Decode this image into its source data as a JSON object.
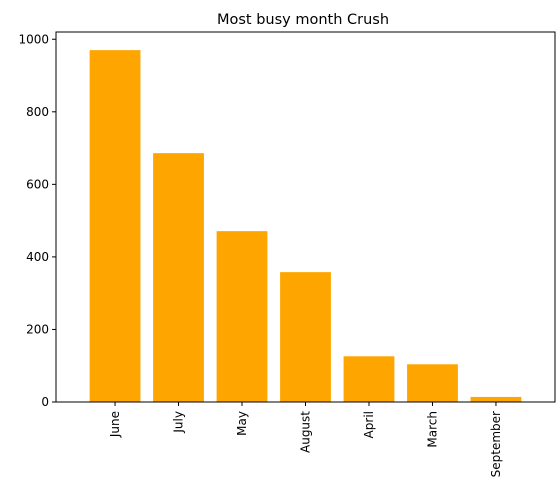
{
  "chart_data": {
    "type": "bar",
    "title": "Most busy month Crush",
    "xlabel": "",
    "ylabel": "",
    "categories": [
      "June",
      "July",
      "May",
      "August",
      "April",
      "March",
      "September"
    ],
    "values": [
      970,
      686,
      471,
      358,
      126,
      104,
      14
    ],
    "ylim": [
      0,
      1020
    ],
    "yticks": [
      0,
      200,
      400,
      600,
      800,
      1000
    ],
    "bar_color": "#ffa500",
    "grid": false,
    "x_tick_rotation": 90
  }
}
